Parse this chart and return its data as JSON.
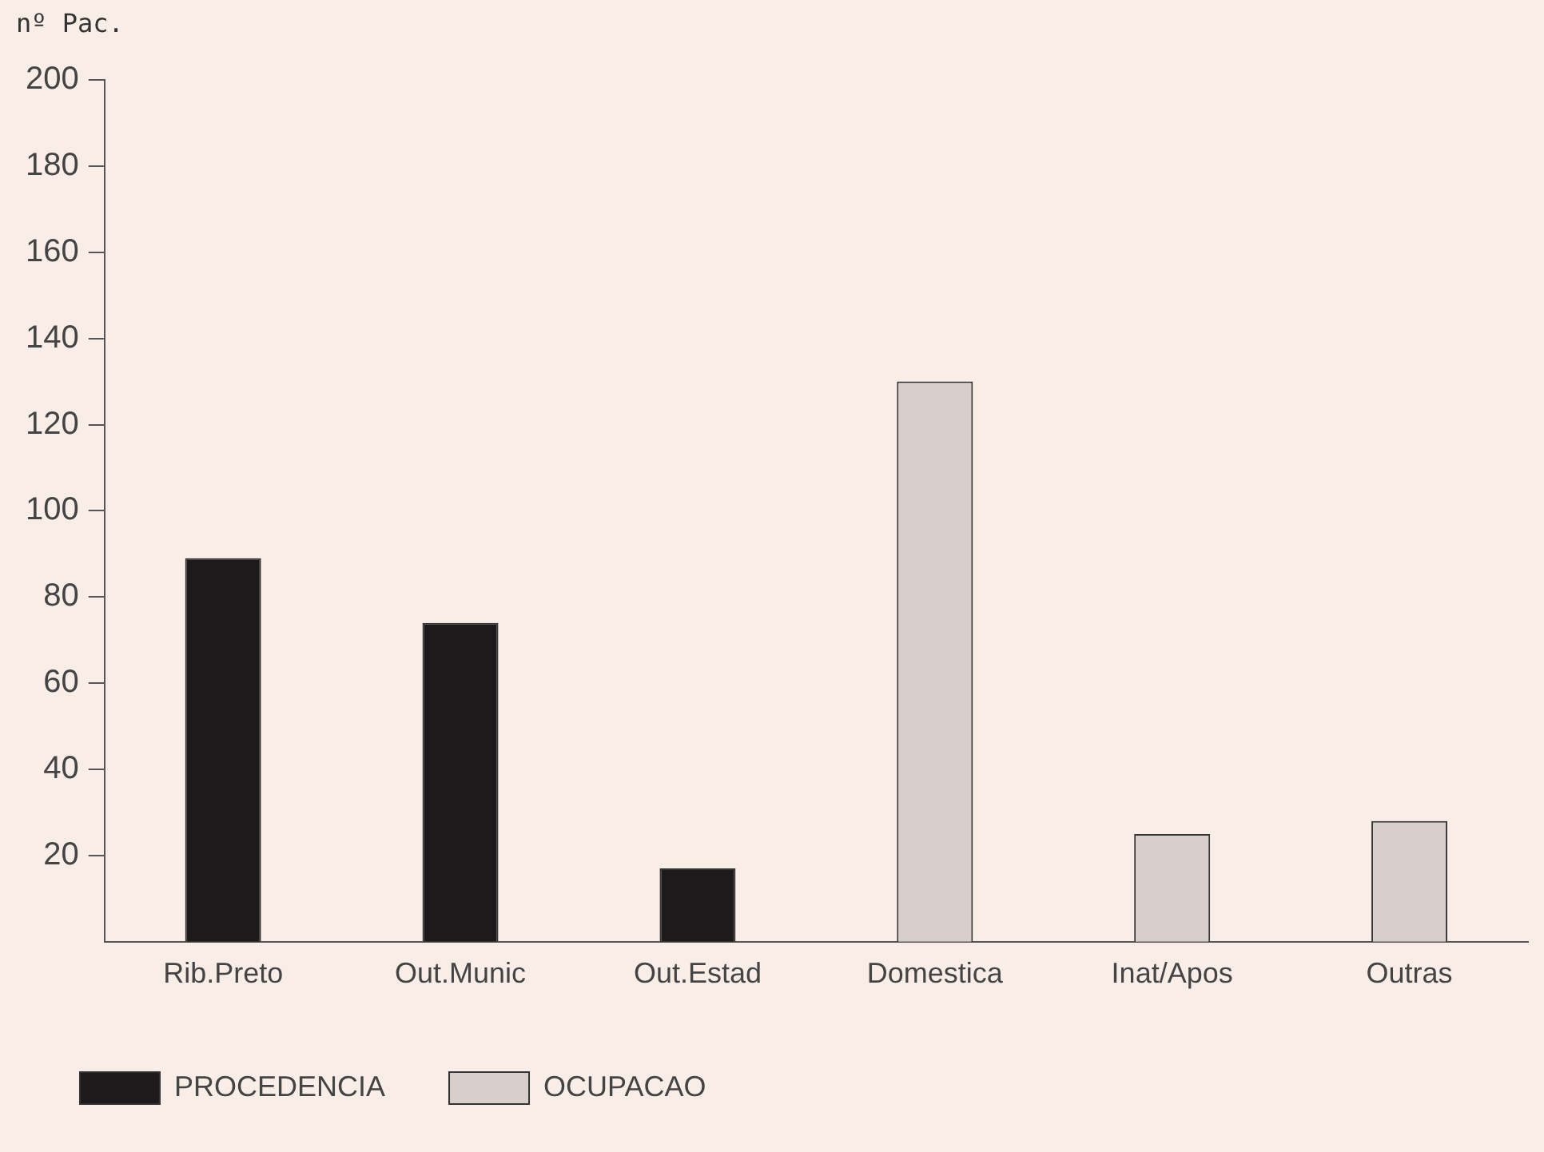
{
  "chart_data": {
    "type": "bar",
    "ylabel": "nº Pac.",
    "categories": [
      "Rib.Preto",
      "Out.Munic",
      "Out.Estad",
      "Domestica",
      "Inat/Apos",
      "Outras"
    ],
    "series": [
      {
        "name": "PROCEDENCIA",
        "color": "#1c1a1a",
        "values": [
          89,
          74,
          17,
          null,
          null,
          null
        ]
      },
      {
        "name": "OCUPACAO",
        "color": "#d8cfca",
        "values": [
          null,
          null,
          null,
          130,
          25,
          28
        ]
      }
    ],
    "ylim": [
      0,
      200
    ],
    "yticks": [
      20,
      40,
      60,
      80,
      100,
      120,
      140,
      160,
      180,
      200
    ],
    "grid": false,
    "legend": "bottom"
  }
}
